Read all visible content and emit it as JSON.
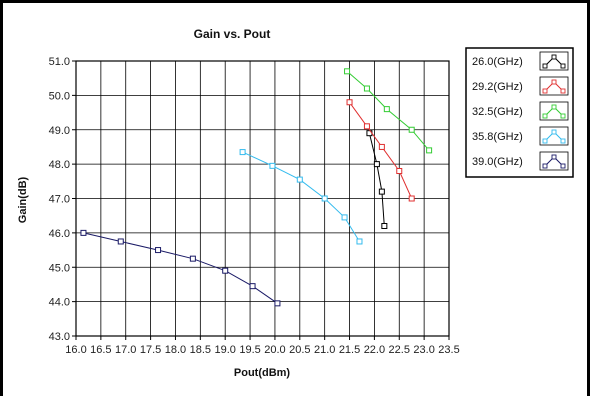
{
  "chart_data": {
    "type": "line",
    "title": "Gain vs. Pout",
    "xlabel": "Pout(dBm)",
    "ylabel": "Gain(dB)",
    "xlim": [
      16.0,
      23.5
    ],
    "ylim": [
      43.0,
      51.0
    ],
    "xticks": [
      "16.0",
      "16.5",
      "17.0",
      "17.5",
      "18.0",
      "18.5",
      "19.0",
      "19.5",
      "20.0",
      "20.5",
      "21.0",
      "21.5",
      "22.0",
      "22.5",
      "23.0",
      "23.5"
    ],
    "yticks": [
      "43.0",
      "44.0",
      "45.0",
      "46.0",
      "47.0",
      "48.0",
      "49.0",
      "50.0",
      "51.0"
    ],
    "grid": true,
    "legend_position": "right",
    "series": [
      {
        "name": "26.0(GHz)",
        "color": "#000000",
        "x": [
          21.9,
          22.05,
          22.15,
          22.2
        ],
        "y": [
          48.9,
          48.0,
          47.2,
          46.2
        ]
      },
      {
        "name": "29.2(GHz)",
        "color": "#e03030",
        "x": [
          21.5,
          21.85,
          22.15,
          22.5,
          22.75
        ],
        "y": [
          49.8,
          49.1,
          48.5,
          47.8,
          47.0
        ]
      },
      {
        "name": "32.5(GHz)",
        "color": "#33cc33",
        "x": [
          21.45,
          21.85,
          22.25,
          22.75,
          23.1
        ],
        "y": [
          50.7,
          50.2,
          49.6,
          49.0,
          48.4
        ]
      },
      {
        "name": "35.8(GHz)",
        "color": "#33bbee",
        "x": [
          19.35,
          19.95,
          20.5,
          21.0,
          21.4,
          21.7
        ],
        "y": [
          48.35,
          47.95,
          47.55,
          47.0,
          46.45,
          45.75
        ]
      },
      {
        "name": "39.0(GHz)",
        "color": "#1a1a66",
        "x": [
          16.15,
          16.9,
          17.65,
          18.35,
          19.0,
          19.55,
          20.05
        ],
        "y": [
          46.0,
          45.75,
          45.5,
          45.25,
          44.9,
          44.45,
          43.95
        ]
      }
    ]
  }
}
